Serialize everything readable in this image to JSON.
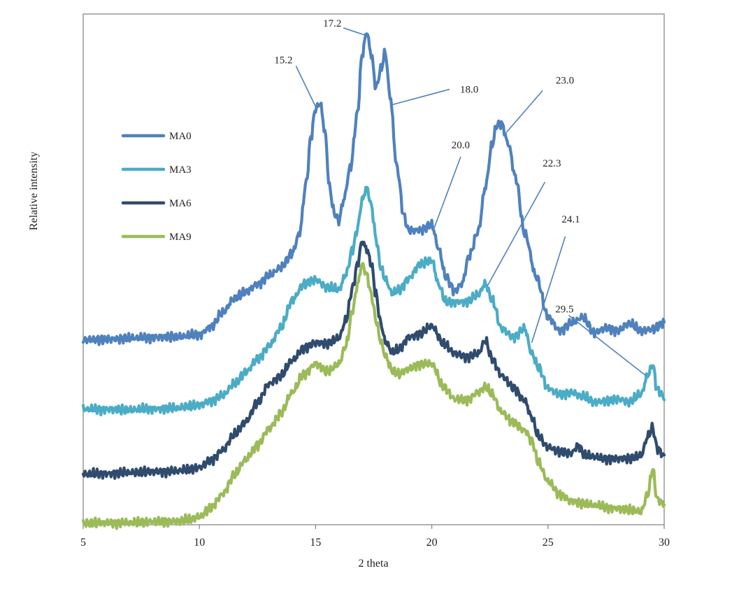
{
  "chart_data": {
    "type": "line",
    "title": "",
    "xlabel": "2 theta",
    "ylabel": "Relative intensity",
    "xlim": [
      5,
      30
    ],
    "xticks": [
      "5",
      "10",
      "15",
      "20",
      "25",
      "30"
    ],
    "ylim": [
      0,
      100
    ],
    "grid": false,
    "legend_position": "left",
    "series": [
      {
        "name": "MA0",
        "color": "#4f81bd",
        "x": [
          5,
          6,
          7,
          8,
          9,
          10,
          10.5,
          11,
          11.5,
          12,
          12.5,
          13,
          13.5,
          14,
          14.3,
          14.6,
          14.8,
          15.0,
          15.2,
          15.4,
          15.6,
          15.8,
          16.0,
          16.2,
          16.5,
          16.8,
          17.0,
          17.2,
          17.4,
          17.6,
          17.8,
          18.0,
          18.2,
          18.5,
          18.8,
          19.0,
          19.5,
          20.0,
          20.3,
          20.6,
          21.0,
          21.3,
          21.6,
          22.0,
          22.3,
          22.6,
          22.8,
          23.0,
          23.3,
          23.6,
          24.0,
          24.5,
          25.0,
          25.5,
          26.0,
          26.5,
          27.0,
          27.5,
          28.0,
          28.5,
          29.0,
          29.5,
          30.0
        ],
        "y": [
          36.2,
          36.3,
          36.5,
          36.7,
          36.8,
          37.2,
          38.8,
          41.5,
          44.3,
          45.6,
          47.1,
          48.8,
          50.3,
          53.2,
          57.0,
          67.0,
          76.0,
          81.5,
          82.5,
          77.0,
          66.0,
          61.0,
          59.5,
          63.5,
          70.0,
          80.5,
          92.0,
          96.5,
          92.0,
          85.5,
          89.0,
          92.5,
          84.0,
          70.0,
          60.5,
          57.6,
          57.7,
          58.7,
          54.0,
          48.5,
          45.8,
          47.2,
          52.5,
          57.5,
          66.0,
          74.5,
          78.3,
          78.5,
          74.5,
          68.0,
          57.0,
          48.5,
          40.7,
          38.0,
          39.5,
          40.6,
          37.6,
          38.5,
          38.0,
          39.4,
          38.0,
          38.3,
          39.5
        ]
      },
      {
        "name": "MA3",
        "color": "#4bacc6",
        "x": [
          5,
          6,
          7,
          8,
          9,
          9.5,
          10,
          10.5,
          11,
          11.5,
          12,
          12.5,
          13,
          13.5,
          14,
          14.5,
          15,
          15.5,
          16,
          16.3,
          16.6,
          16.8,
          17.0,
          17.2,
          17.4,
          17.6,
          17.8,
          18.0,
          18.3,
          18.6,
          19.0,
          19.5,
          20.0,
          20.3,
          20.6,
          21.0,
          21.5,
          22.0,
          22.3,
          22.6,
          23.0,
          23.5,
          24.0,
          24.3,
          24.6,
          25.0,
          25.5,
          26.0,
          26.5,
          27.0,
          27.5,
          28.0,
          28.5,
          29.0,
          29.3,
          29.5,
          29.7,
          30.0
        ],
        "y": [
          22.6,
          22.6,
          22.5,
          22.7,
          22.8,
          23.2,
          23.4,
          24.3,
          25.3,
          27.6,
          29.9,
          32.4,
          35.0,
          38.5,
          44.0,
          47.1,
          48.0,
          46.5,
          46.0,
          49.0,
          54.0,
          58.0,
          63.5,
          66.0,
          62.5,
          56.0,
          50.5,
          48.0,
          45.3,
          46.0,
          48.2,
          51.0,
          51.8,
          47.0,
          43.6,
          43.6,
          43.7,
          45.0,
          47.2,
          44.0,
          38.4,
          36.8,
          38.4,
          33.5,
          30.7,
          26.7,
          25.5,
          25.9,
          25.1,
          24.0,
          24.2,
          24.6,
          24.1,
          25.5,
          29.3,
          31.4,
          26.5,
          25.0
        ]
      },
      {
        "name": "MA6",
        "color": "#2f4b6e",
        "x": [
          5,
          6,
          7,
          8,
          9,
          9.5,
          10,
          10.5,
          11,
          11.5,
          12,
          12.5,
          13,
          13.5,
          14,
          14.5,
          15,
          15.5,
          16,
          16.3,
          16.6,
          16.8,
          17.0,
          17.2,
          17.4,
          17.6,
          17.8,
          18.0,
          18.3,
          18.6,
          19.0,
          19.5,
          20.0,
          20.5,
          21.0,
          21.5,
          22.0,
          22.3,
          22.6,
          23.0,
          23.5,
          24.0,
          24.3,
          24.6,
          25.0,
          25.5,
          26.0,
          26.3,
          26.6,
          27.0,
          27.5,
          28.0,
          28.5,
          29.0,
          29.3,
          29.5,
          29.7,
          30.0
        ],
        "y": [
          9.9,
          10.0,
          10.2,
          10.4,
          10.5,
          10.8,
          11.2,
          12.6,
          14.6,
          17.6,
          20.2,
          23.9,
          27.6,
          29.1,
          32.2,
          34.6,
          35.6,
          35.5,
          36.5,
          40.0,
          46.5,
          51.0,
          55.5,
          54.0,
          51.0,
          45.0,
          39.5,
          35.9,
          33.8,
          34.3,
          36.7,
          37.4,
          38.9,
          35.5,
          33.5,
          32.9,
          33.5,
          36.1,
          32.4,
          29.2,
          26.9,
          24.3,
          21.0,
          17.2,
          15.2,
          14.3,
          14.0,
          15.5,
          13.5,
          13.3,
          12.9,
          12.9,
          13.0,
          13.5,
          17.3,
          19.0,
          15.0,
          13.5
        ]
      },
      {
        "name": "MA9",
        "color": "#9bbb59",
        "x": [
          5,
          6,
          7,
          8,
          9,
          9.5,
          10,
          10.5,
          11,
          11.5,
          12,
          12.5,
          13,
          13.5,
          14,
          14.5,
          15,
          15.5,
          16,
          16.3,
          16.6,
          16.8,
          17.0,
          17.2,
          17.4,
          17.6,
          17.8,
          18.0,
          18.3,
          18.6,
          19.0,
          19.5,
          20.0,
          20.5,
          21.0,
          21.5,
          22.0,
          22.3,
          22.6,
          23.0,
          23.5,
          24.0,
          24.3,
          24.6,
          25.0,
          25.5,
          26.0,
          26.5,
          27.0,
          27.5,
          28.0,
          28.5,
          29.0,
          29.3,
          29.5,
          29.7,
          30.0
        ],
        "y": [
          0.3,
          0.4,
          0.4,
          0.6,
          0.7,
          0.9,
          1.6,
          3.3,
          6.0,
          9.7,
          12.8,
          15.6,
          18.8,
          21.8,
          26.0,
          29.5,
          31.5,
          30.0,
          31.5,
          35.0,
          42.0,
          47.0,
          51.0,
          49.0,
          45.0,
          40.0,
          36.0,
          33.0,
          30.2,
          29.5,
          30.5,
          31.5,
          31.5,
          27.0,
          24.6,
          24.4,
          25.9,
          27.0,
          25.5,
          22.1,
          20.0,
          18.5,
          16.5,
          12.0,
          8.5,
          6.0,
          4.6,
          4.2,
          3.8,
          3.4,
          3.2,
          2.9,
          2.6,
          6.0,
          11.0,
          5.0,
          4.0
        ]
      }
    ],
    "annotations": [
      {
        "text": "15.2",
        "x": 15.0,
        "series": "MA0"
      },
      {
        "text": "17.2",
        "x": 17.1,
        "series": "MA0"
      },
      {
        "text": "18.0",
        "x": 18.3,
        "series": "MA0"
      },
      {
        "text": "20.0",
        "x": 20.1,
        "series": "MA0"
      },
      {
        "text": "23.0",
        "x": 23.2,
        "series": "MA0"
      },
      {
        "text": "22.3",
        "x": 22.4,
        "series": "MA3"
      },
      {
        "text": "24.1",
        "x": 24.3,
        "series": "MA3"
      },
      {
        "text": "29.5",
        "x": 29.2,
        "series": "MA3"
      }
    ]
  }
}
